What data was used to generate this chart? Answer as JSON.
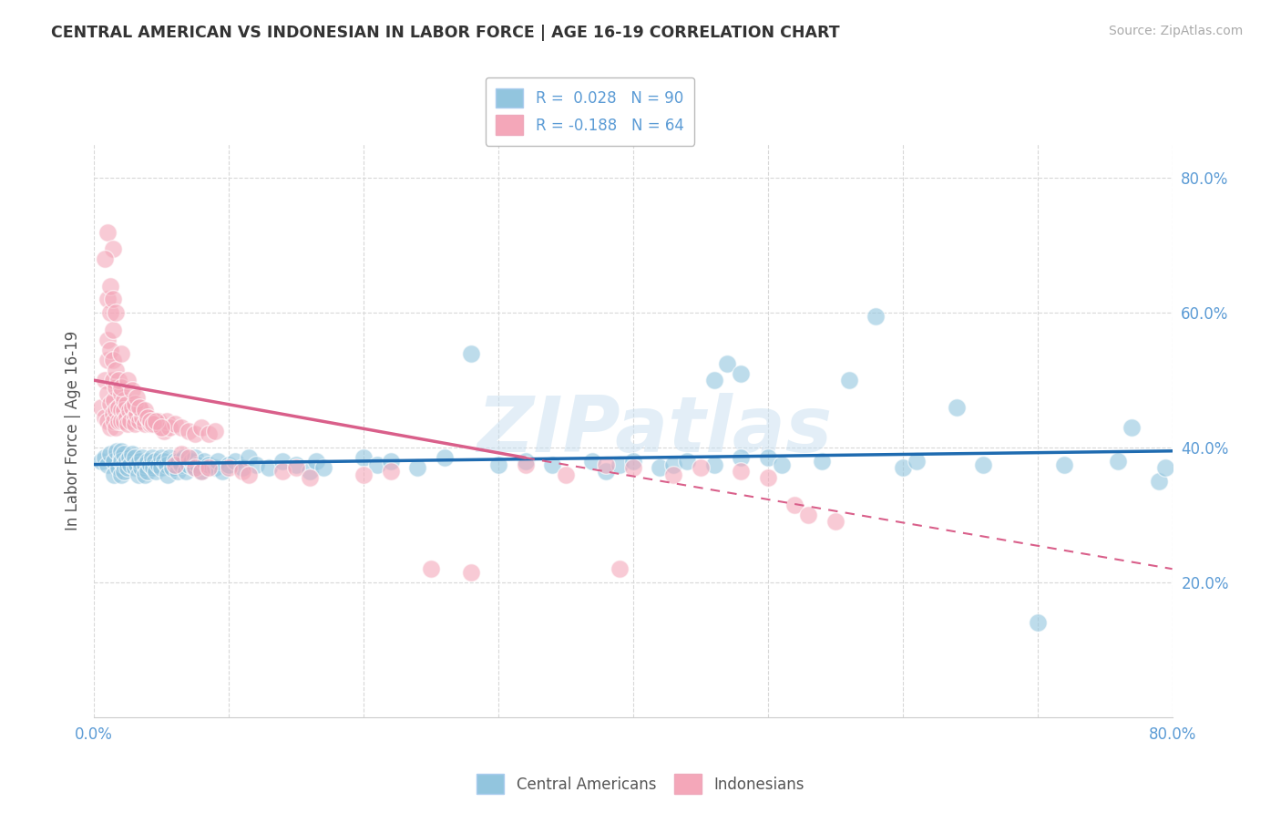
{
  "title": "CENTRAL AMERICAN VS INDONESIAN IN LABOR FORCE | AGE 16-19 CORRELATION CHART",
  "source": "Source: ZipAtlas.com",
  "ylabel": "In Labor Force | Age 16-19",
  "xmin": 0.0,
  "xmax": 0.8,
  "ymin": 0.0,
  "ymax": 0.85,
  "ytick_vals": [
    0.2,
    0.4,
    0.6,
    0.8
  ],
  "ytick_labels": [
    "20.0%",
    "40.0%",
    "60.0%",
    "80.0%"
  ],
  "xtick_vals": [
    0.0,
    0.1,
    0.2,
    0.3,
    0.4,
    0.5,
    0.6,
    0.7,
    0.8
  ],
  "xtick_left_label": "0.0%",
  "xtick_right_label": "80.0%",
  "legend_label1": "R =  0.028   N = 90",
  "legend_label2": "R = -0.188   N = 64",
  "blue_color": "#92c5de",
  "pink_color": "#f4a7b9",
  "blue_line_color": "#1f6bb0",
  "pink_line_color": "#d95f8a",
  "tick_color": "#5b9bd5",
  "grid_color": "#d8d8d8",
  "watermark_text": "ZIPatlas",
  "blue_scatter": [
    [
      0.005,
      0.38
    ],
    [
      0.008,
      0.385
    ],
    [
      0.01,
      0.375
    ],
    [
      0.012,
      0.39
    ],
    [
      0.015,
      0.38
    ],
    [
      0.015,
      0.36
    ],
    [
      0.017,
      0.395
    ],
    [
      0.018,
      0.37
    ],
    [
      0.02,
      0.385
    ],
    [
      0.02,
      0.36
    ],
    [
      0.02,
      0.395
    ],
    [
      0.02,
      0.38
    ],
    [
      0.022,
      0.375
    ],
    [
      0.022,
      0.39
    ],
    [
      0.022,
      0.365
    ],
    [
      0.024,
      0.38
    ],
    [
      0.025,
      0.37
    ],
    [
      0.026,
      0.385
    ],
    [
      0.027,
      0.375
    ],
    [
      0.028,
      0.39
    ],
    [
      0.03,
      0.37
    ],
    [
      0.03,
      0.385
    ],
    [
      0.032,
      0.375
    ],
    [
      0.033,
      0.36
    ],
    [
      0.034,
      0.38
    ],
    [
      0.035,
      0.37
    ],
    [
      0.036,
      0.385
    ],
    [
      0.038,
      0.375
    ],
    [
      0.038,
      0.36
    ],
    [
      0.04,
      0.38
    ],
    [
      0.04,
      0.365
    ],
    [
      0.042,
      0.375
    ],
    [
      0.043,
      0.385
    ],
    [
      0.044,
      0.37
    ],
    [
      0.045,
      0.38
    ],
    [
      0.046,
      0.365
    ],
    [
      0.048,
      0.375
    ],
    [
      0.05,
      0.385
    ],
    [
      0.05,
      0.37
    ],
    [
      0.052,
      0.38
    ],
    [
      0.054,
      0.375
    ],
    [
      0.055,
      0.36
    ],
    [
      0.056,
      0.385
    ],
    [
      0.058,
      0.37
    ],
    [
      0.06,
      0.38
    ],
    [
      0.062,
      0.365
    ],
    [
      0.063,
      0.38
    ],
    [
      0.065,
      0.375
    ],
    [
      0.067,
      0.385
    ],
    [
      0.068,
      0.365
    ],
    [
      0.07,
      0.375
    ],
    [
      0.072,
      0.38
    ],
    [
      0.074,
      0.37
    ],
    [
      0.075,
      0.385
    ],
    [
      0.077,
      0.375
    ],
    [
      0.08,
      0.365
    ],
    [
      0.082,
      0.38
    ],
    [
      0.085,
      0.375
    ],
    [
      0.09,
      0.37
    ],
    [
      0.092,
      0.38
    ],
    [
      0.095,
      0.365
    ],
    [
      0.1,
      0.375
    ],
    [
      0.105,
      0.38
    ],
    [
      0.11,
      0.37
    ],
    [
      0.115,
      0.385
    ],
    [
      0.12,
      0.375
    ],
    [
      0.13,
      0.37
    ],
    [
      0.14,
      0.38
    ],
    [
      0.15,
      0.375
    ],
    [
      0.16,
      0.365
    ],
    [
      0.165,
      0.38
    ],
    [
      0.17,
      0.37
    ],
    [
      0.2,
      0.385
    ],
    [
      0.21,
      0.375
    ],
    [
      0.22,
      0.38
    ],
    [
      0.24,
      0.37
    ],
    [
      0.26,
      0.385
    ],
    [
      0.28,
      0.54
    ],
    [
      0.3,
      0.375
    ],
    [
      0.32,
      0.38
    ],
    [
      0.34,
      0.375
    ],
    [
      0.37,
      0.38
    ],
    [
      0.38,
      0.365
    ],
    [
      0.39,
      0.375
    ],
    [
      0.4,
      0.38
    ],
    [
      0.42,
      0.37
    ],
    [
      0.43,
      0.375
    ],
    [
      0.44,
      0.38
    ],
    [
      0.46,
      0.375
    ],
    [
      0.48,
      0.385
    ]
  ],
  "blue_scatter_outliers": [
    [
      0.46,
      0.5
    ],
    [
      0.47,
      0.525
    ],
    [
      0.48,
      0.51
    ],
    [
      0.5,
      0.385
    ],
    [
      0.51,
      0.375
    ],
    [
      0.54,
      0.38
    ],
    [
      0.56,
      0.5
    ],
    [
      0.58,
      0.595
    ],
    [
      0.6,
      0.37
    ],
    [
      0.61,
      0.38
    ],
    [
      0.64,
      0.46
    ],
    [
      0.66,
      0.375
    ],
    [
      0.7,
      0.14
    ],
    [
      0.72,
      0.375
    ],
    [
      0.76,
      0.38
    ],
    [
      0.77,
      0.43
    ],
    [
      0.79,
      0.35
    ],
    [
      0.795,
      0.37
    ]
  ],
  "pink_scatter": [
    [
      0.005,
      0.46
    ],
    [
      0.008,
      0.5
    ],
    [
      0.008,
      0.445
    ],
    [
      0.01,
      0.48
    ],
    [
      0.01,
      0.44
    ],
    [
      0.012,
      0.465
    ],
    [
      0.012,
      0.43
    ],
    [
      0.014,
      0.5
    ],
    [
      0.014,
      0.45
    ],
    [
      0.015,
      0.47
    ],
    [
      0.015,
      0.44
    ],
    [
      0.016,
      0.49
    ],
    [
      0.016,
      0.455
    ],
    [
      0.016,
      0.43
    ],
    [
      0.018,
      0.46
    ],
    [
      0.018,
      0.44
    ],
    [
      0.02,
      0.48
    ],
    [
      0.02,
      0.455
    ],
    [
      0.02,
      0.44
    ],
    [
      0.022,
      0.47
    ],
    [
      0.022,
      0.455
    ],
    [
      0.022,
      0.44
    ],
    [
      0.024,
      0.465
    ],
    [
      0.024,
      0.445
    ],
    [
      0.025,
      0.435
    ],
    [
      0.026,
      0.455
    ],
    [
      0.027,
      0.44
    ],
    [
      0.028,
      0.46
    ],
    [
      0.03,
      0.445
    ],
    [
      0.03,
      0.435
    ],
    [
      0.032,
      0.45
    ],
    [
      0.034,
      0.44
    ],
    [
      0.035,
      0.455
    ],
    [
      0.036,
      0.445
    ],
    [
      0.038,
      0.435
    ],
    [
      0.04,
      0.445
    ],
    [
      0.042,
      0.435
    ],
    [
      0.044,
      0.44
    ],
    [
      0.046,
      0.435
    ],
    [
      0.048,
      0.44
    ],
    [
      0.05,
      0.43
    ],
    [
      0.052,
      0.425
    ],
    [
      0.054,
      0.44
    ],
    [
      0.056,
      0.43
    ],
    [
      0.06,
      0.435
    ],
    [
      0.065,
      0.43
    ],
    [
      0.07,
      0.425
    ],
    [
      0.075,
      0.42
    ],
    [
      0.08,
      0.43
    ],
    [
      0.085,
      0.42
    ],
    [
      0.09,
      0.425
    ],
    [
      0.01,
      0.56
    ],
    [
      0.01,
      0.53
    ],
    [
      0.012,
      0.545
    ],
    [
      0.014,
      0.53
    ],
    [
      0.016,
      0.515
    ],
    [
      0.018,
      0.5
    ],
    [
      0.02,
      0.49
    ],
    [
      0.01,
      0.62
    ],
    [
      0.012,
      0.6
    ],
    [
      0.014,
      0.575
    ],
    [
      0.012,
      0.64
    ],
    [
      0.014,
      0.62
    ],
    [
      0.016,
      0.6
    ]
  ],
  "pink_scatter_spread": [
    [
      0.01,
      0.72
    ],
    [
      0.014,
      0.695
    ],
    [
      0.008,
      0.68
    ],
    [
      0.02,
      0.54
    ],
    [
      0.025,
      0.5
    ],
    [
      0.028,
      0.485
    ],
    [
      0.03,
      0.465
    ],
    [
      0.032,
      0.475
    ],
    [
      0.034,
      0.46
    ],
    [
      0.038,
      0.455
    ],
    [
      0.04,
      0.445
    ],
    [
      0.042,
      0.44
    ],
    [
      0.044,
      0.435
    ],
    [
      0.046,
      0.44
    ],
    [
      0.05,
      0.43
    ],
    [
      0.06,
      0.375
    ],
    [
      0.065,
      0.39
    ],
    [
      0.07,
      0.385
    ],
    [
      0.075,
      0.37
    ],
    [
      0.08,
      0.365
    ],
    [
      0.085,
      0.37
    ],
    [
      0.1,
      0.37
    ],
    [
      0.11,
      0.365
    ],
    [
      0.115,
      0.36
    ],
    [
      0.14,
      0.365
    ],
    [
      0.15,
      0.37
    ],
    [
      0.16,
      0.355
    ],
    [
      0.2,
      0.36
    ],
    [
      0.22,
      0.365
    ],
    [
      0.25,
      0.22
    ],
    [
      0.28,
      0.215
    ],
    [
      0.32,
      0.375
    ],
    [
      0.35,
      0.36
    ],
    [
      0.38,
      0.375
    ],
    [
      0.39,
      0.22
    ],
    [
      0.4,
      0.37
    ],
    [
      0.43,
      0.36
    ],
    [
      0.45,
      0.37
    ],
    [
      0.48,
      0.365
    ],
    [
      0.5,
      0.355
    ],
    [
      0.52,
      0.315
    ],
    [
      0.53,
      0.3
    ],
    [
      0.55,
      0.29
    ]
  ]
}
